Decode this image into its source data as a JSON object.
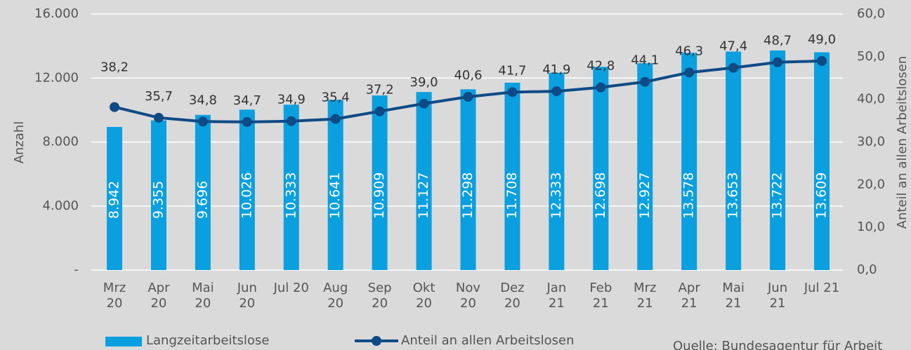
{
  "chart_data": {
    "type": "bar-line",
    "categories": [
      "Mrz\n20",
      "Apr\n20",
      "Mai\n20",
      "Jun\n20",
      "Jul 20",
      "Aug\n20",
      "Sep\n20",
      "Okt\n20",
      "Nov\n20",
      "Dez\n20",
      "Jan\n21",
      "Feb\n21",
      "Mrz\n21",
      "Apr\n21",
      "Mai\n21",
      "Jun\n21",
      "Jul 21"
    ],
    "series": [
      {
        "name": "Langzeitarbeitslose",
        "type": "bar",
        "color": "#0a9fdf",
        "values": [
          8942,
          9355,
          9696,
          10026,
          10333,
          10641,
          10909,
          11127,
          11298,
          11708,
          12333,
          12698,
          12927,
          13578,
          13653,
          13722,
          13609
        ],
        "value_labels": [
          "8.942",
          "9.355",
          "9.696",
          "10.026",
          "10.333",
          "10.641",
          "10.909",
          "11.127",
          "11.298",
          "11.708",
          "12.333",
          "12.698",
          "12.927",
          "13.578",
          "13.653",
          "13.722",
          "13.609"
        ]
      },
      {
        "name": "Anteil an allen Arbeitslosen",
        "type": "line",
        "axis": "y2",
        "color": "#0d4a86",
        "values": [
          38.2,
          35.7,
          34.8,
          34.7,
          34.9,
          35.4,
          37.2,
          39.0,
          40.6,
          41.7,
          41.9,
          42.8,
          44.1,
          46.3,
          47.4,
          48.7,
          49.0
        ],
        "value_labels": [
          "38,2",
          "35,7",
          "34,8",
          "34,7",
          "34,9",
          "35,4",
          "37,2",
          "39,0",
          "40,6",
          "41,7",
          "41,9",
          "42,8",
          "44,1",
          "46,3",
          "47,4",
          "48,7",
          "49,0"
        ]
      }
    ],
    "ylabel": "Anzahl",
    "y2label": "Anteil an allen Arbeitslosen",
    "ylim": [
      0,
      16000
    ],
    "yticks": [
      {
        "value": 0,
        "label": "-"
      },
      {
        "value": 4000,
        "label": "4.000"
      },
      {
        "value": 8000,
        "label": "8.000"
      },
      {
        "value": 12000,
        "label": "12.000"
      },
      {
        "value": 16000,
        "label": "16.000"
      }
    ],
    "y2lim": [
      0,
      60
    ],
    "y2ticks": [
      {
        "value": 0,
        "label": "0,0"
      },
      {
        "value": 10,
        "label": "10,0"
      },
      {
        "value": 20,
        "label": "20,0"
      },
      {
        "value": 30,
        "label": "30,0"
      },
      {
        "value": 40,
        "label": "40,0"
      },
      {
        "value": 50,
        "label": "50,0"
      },
      {
        "value": 60,
        "label": "60,0"
      }
    ],
    "grid": true,
    "source": "Quelle: Bundesagentur für Arbeit"
  }
}
